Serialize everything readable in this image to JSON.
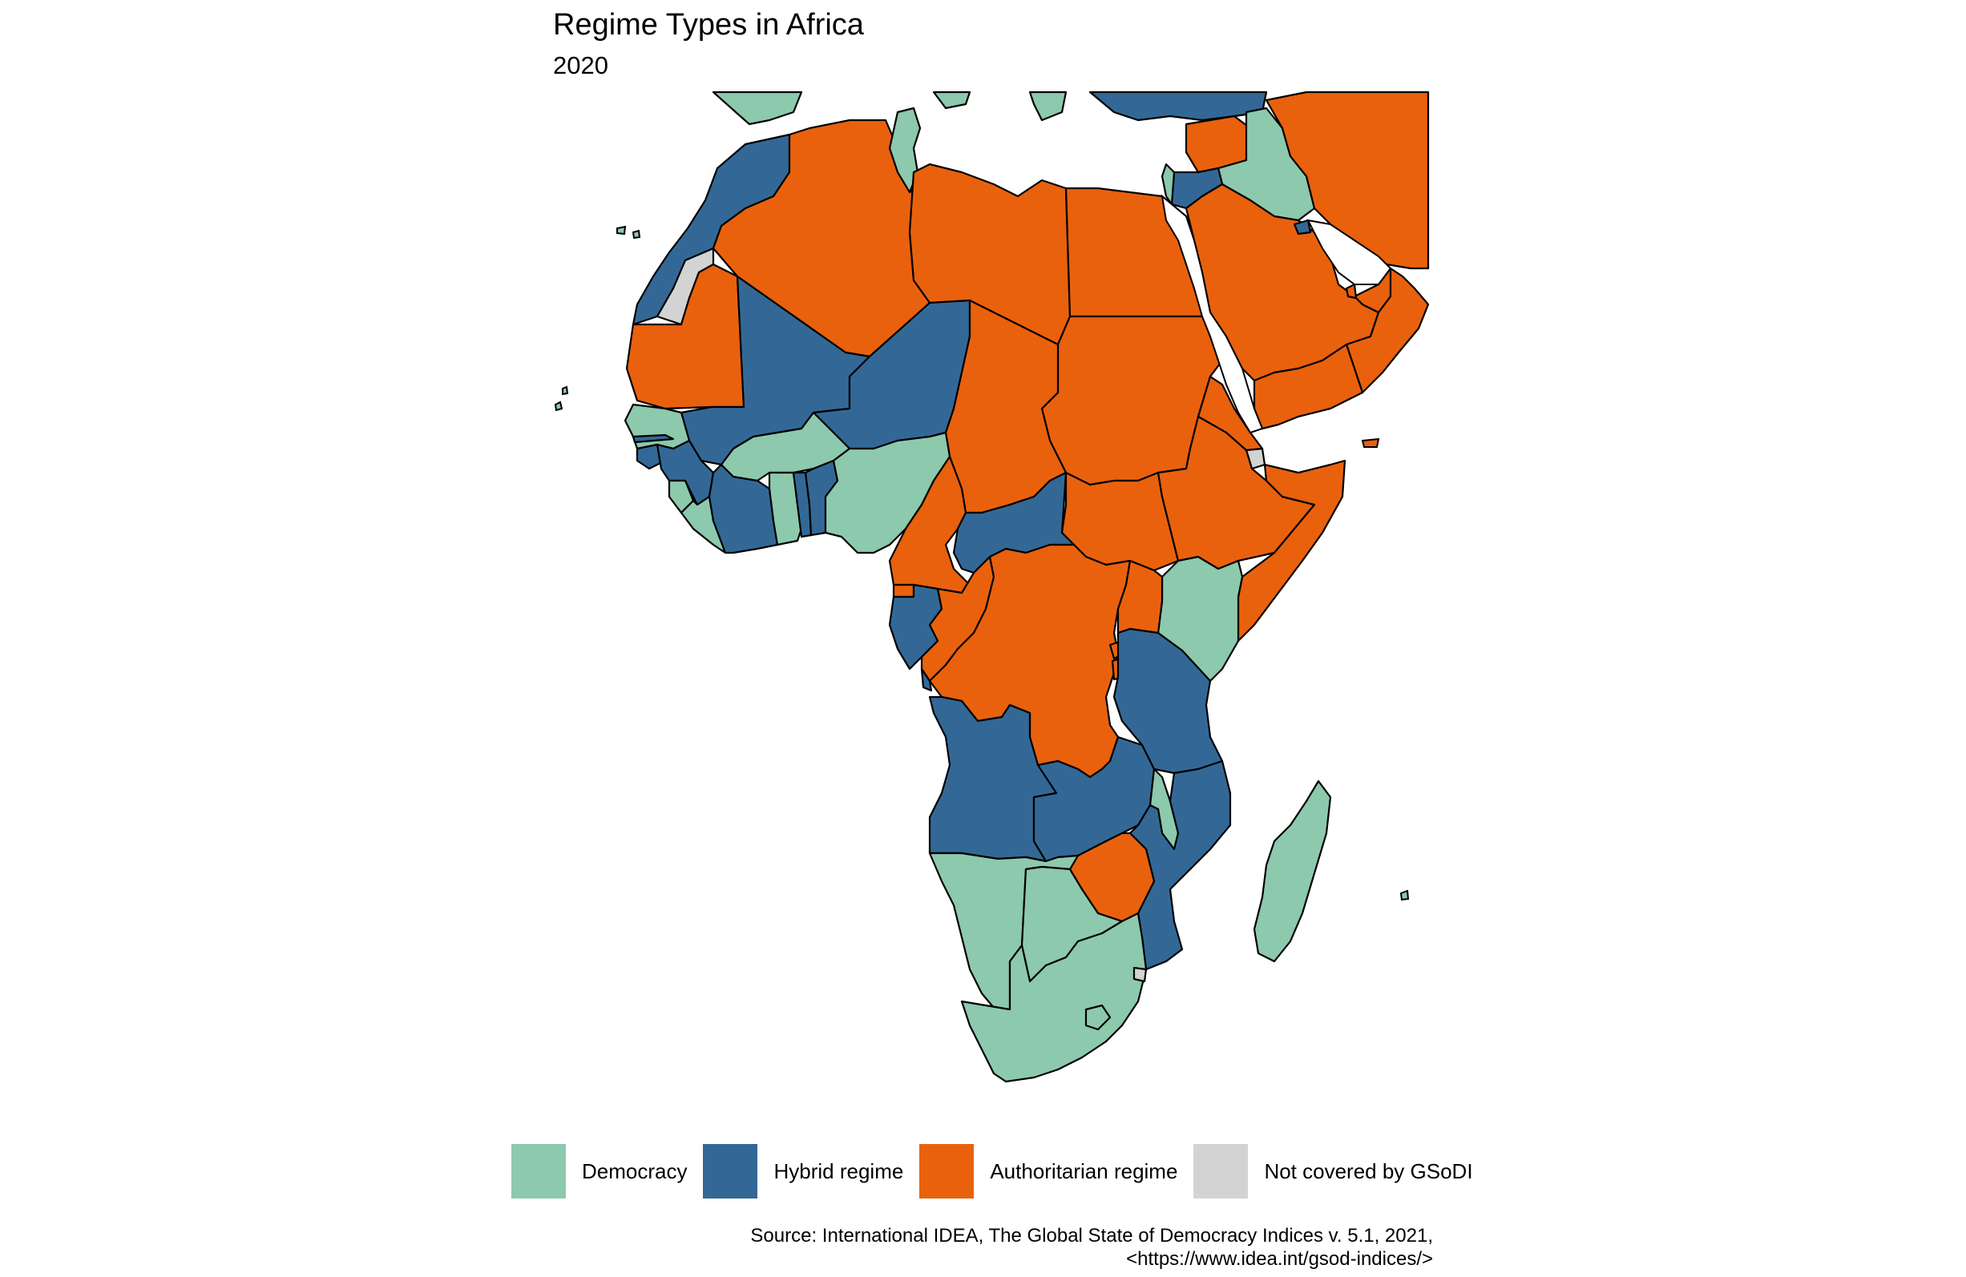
{
  "title": "Regime Types in Africa",
  "subtitle": "2020",
  "legend": {
    "items": [
      {
        "label": "Democracy",
        "color": "#8dc9ad"
      },
      {
        "label": "Hybrid regime",
        "color": "#336896"
      },
      {
        "label": "Authoritarian regime",
        "color": "#e9610d"
      },
      {
        "label": "Not covered by GSoDI",
        "color": "#d3d3d3"
      }
    ]
  },
  "caption": {
    "line1": "Source: International IDEA, The Global State of Democracy Indices v. 5.1, 2021,",
    "line2": "<https://www.idea.int/gsod-indices/>"
  },
  "colors": {
    "democracy": "#8dc9ad",
    "hybrid": "#336896",
    "authoritarian": "#e9610d",
    "not_covered": "#d3d3d3",
    "border": "#000000"
  }
}
